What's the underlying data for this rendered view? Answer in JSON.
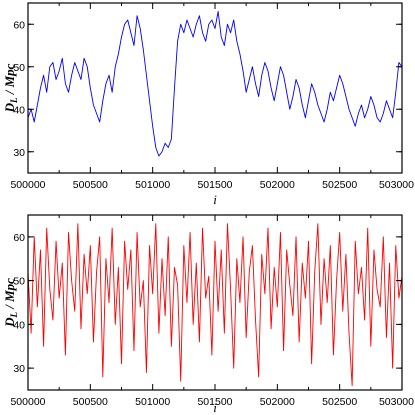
{
  "chart_data": [
    {
      "type": "line",
      "xlabel": "i",
      "ylabel": "D_L / Mpc",
      "ylabel_parts": {
        "main": "D",
        "sub": "L",
        "rest": " / Mpc"
      },
      "xlim": [
        500000,
        503000
      ],
      "ylim": [
        25,
        65
      ],
      "xticks": [
        500000,
        500500,
        501000,
        501500,
        502000,
        502500,
        503000
      ],
      "yticks": [
        30,
        40,
        50,
        60
      ],
      "grid": false,
      "series": [
        {
          "color": "#0000ff",
          "x": [
            500000,
            500025,
            500050,
            500075,
            500100,
            500125,
            500150,
            500175,
            500200,
            500225,
            500250,
            500275,
            500300,
            500325,
            500350,
            500375,
            500400,
            500425,
            500450,
            500475,
            500500,
            500525,
            500550,
            500575,
            500600,
            500625,
            500650,
            500675,
            500700,
            500725,
            500750,
            500775,
            500800,
            500825,
            500850,
            500875,
            500900,
            500925,
            500950,
            500975,
            501000,
            501025,
            501050,
            501075,
            501100,
            501125,
            501150,
            501175,
            501200,
            501225,
            501250,
            501275,
            501300,
            501325,
            501350,
            501375,
            501400,
            501425,
            501450,
            501475,
            501500,
            501525,
            501550,
            501575,
            501600,
            501625,
            501650,
            501675,
            501700,
            501725,
            501750,
            501775,
            501800,
            501825,
            501850,
            501875,
            501900,
            501925,
            501950,
            501975,
            502000,
            502025,
            502050,
            502075,
            502100,
            502125,
            502150,
            502175,
            502200,
            502225,
            502250,
            502275,
            502300,
            502325,
            502350,
            502375,
            502400,
            502425,
            502450,
            502475,
            502500,
            502525,
            502550,
            502575,
            502600,
            502625,
            502650,
            502675,
            502700,
            502725,
            502750,
            502775,
            502800,
            502825,
            502850,
            502875,
            502900,
            502925,
            502950,
            502975,
            503000
          ],
          "values": [
            38,
            40,
            37,
            41,
            45,
            48,
            44,
            50,
            51,
            47,
            49,
            52,
            46,
            44,
            48,
            51,
            49,
            47,
            52,
            50,
            45,
            41,
            39,
            37,
            42,
            46,
            48,
            44,
            50,
            53,
            57,
            60,
            61,
            58,
            55,
            62,
            59,
            54,
            48,
            42,
            36,
            31,
            29,
            30,
            32,
            31,
            33,
            45,
            56,
            60,
            58,
            61,
            59,
            57,
            60,
            62,
            58,
            56,
            60,
            61,
            59,
            63,
            57,
            55,
            60,
            58,
            61,
            56,
            53,
            49,
            44,
            47,
            50,
            46,
            43,
            48,
            51,
            49,
            45,
            42,
            46,
            50,
            48,
            44,
            40,
            43,
            47,
            45,
            41,
            38,
            42,
            46,
            44,
            41,
            39,
            37,
            40,
            44,
            42,
            45,
            48,
            46,
            43,
            40,
            38,
            36,
            39,
            41,
            38,
            40,
            43,
            41,
            38,
            37,
            39,
            42,
            40,
            38,
            44,
            51,
            50
          ]
        }
      ]
    },
    {
      "type": "line",
      "xlabel": "i",
      "ylabel": "D_L / Mpc",
      "ylabel_parts": {
        "main": "D",
        "sub": "L",
        "rest": " / Mpc"
      },
      "xlim": [
        500000,
        503000
      ],
      "ylim": [
        25,
        65
      ],
      "xticks": [
        500000,
        500500,
        501000,
        501500,
        502000,
        502500,
        503000
      ],
      "yticks": [
        30,
        40,
        50,
        60
      ],
      "grid": false,
      "series": [
        {
          "color": "#ff0000",
          "x": [
            500000,
            500025,
            500050,
            500075,
            500100,
            500125,
            500150,
            500175,
            500200,
            500225,
            500250,
            500275,
            500300,
            500325,
            500350,
            500375,
            500400,
            500425,
            500450,
            500475,
            500500,
            500525,
            500550,
            500575,
            500600,
            500625,
            500650,
            500675,
            500700,
            500725,
            500750,
            500775,
            500800,
            500825,
            500850,
            500875,
            500900,
            500925,
            500950,
            500975,
            501000,
            501025,
            501050,
            501075,
            501100,
            501125,
            501150,
            501175,
            501200,
            501225,
            501250,
            501275,
            501300,
            501325,
            501350,
            501375,
            501400,
            501425,
            501450,
            501475,
            501500,
            501525,
            501550,
            501575,
            501600,
            501625,
            501650,
            501675,
            501700,
            501725,
            501750,
            501775,
            501800,
            501825,
            501850,
            501875,
            501900,
            501925,
            501950,
            501975,
            502000,
            502025,
            502050,
            502075,
            502100,
            502125,
            502150,
            502175,
            502200,
            502225,
            502250,
            502275,
            502300,
            502325,
            502350,
            502375,
            502400,
            502425,
            502450,
            502475,
            502500,
            502525,
            502550,
            502575,
            502600,
            502625,
            502650,
            502675,
            502700,
            502725,
            502750,
            502775,
            502800,
            502825,
            502850,
            502875,
            502900,
            502925,
            502950,
            502975,
            503000
          ],
          "values": [
            52,
            38,
            60,
            44,
            57,
            35,
            62,
            48,
            41,
            59,
            46,
            54,
            33,
            61,
            50,
            43,
            63,
            39,
            56,
            47,
            58,
            36,
            52,
            60,
            28,
            55,
            45,
            62,
            40,
            53,
            31,
            59,
            48,
            57,
            34,
            61,
            44,
            50,
            29,
            58,
            47,
            63,
            38,
            55,
            42,
            60,
            35,
            53,
            49,
            27,
            58,
            45,
            61,
            40,
            54,
            36,
            62,
            46,
            51,
            33,
            59,
            43,
            57,
            38,
            63,
            48,
            30,
            55,
            45,
            60,
            37,
            52,
            58,
            41,
            28,
            56,
            47,
            62,
            39,
            53,
            44,
            61,
            34,
            57,
            49,
            42,
            60,
            36,
            54,
            46,
            59,
            31,
            52,
            63,
            40,
            55,
            45,
            58,
            33,
            50,
            61,
            43,
            56,
            38,
            26,
            59,
            47,
            53,
            41,
            62,
            35,
            57,
            48,
            44,
            60,
            37,
            54,
            30,
            58,
            46,
            51
          ]
        }
      ]
    }
  ]
}
